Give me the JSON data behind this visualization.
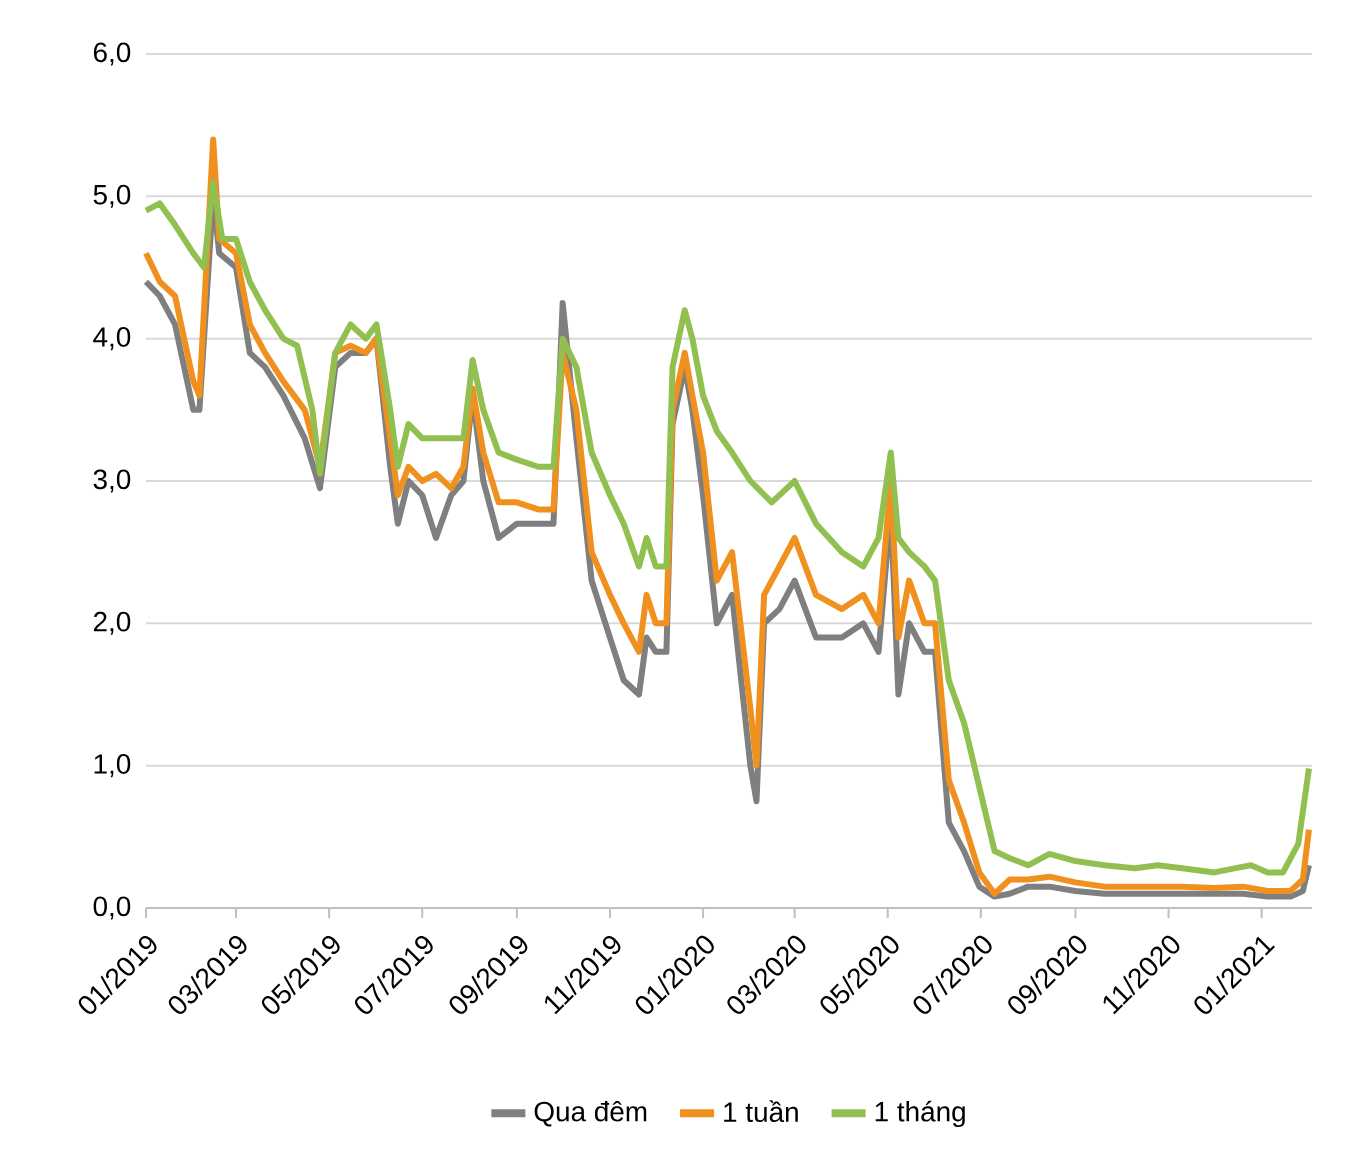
{
  "chart_data": {
    "type": "line",
    "xlim": [
      "2019-01-01",
      "2021-02-03"
    ],
    "xticks": [
      {
        "value": "2019-01-01",
        "label": "01/2019"
      },
      {
        "value": "2019-03-01",
        "label": "03/2019"
      },
      {
        "value": "2019-05-01",
        "label": "05/2019"
      },
      {
        "value": "2019-07-01",
        "label": "07/2019"
      },
      {
        "value": "2019-09-01",
        "label": "09/2019"
      },
      {
        "value": "2019-11-01",
        "label": "11/2019"
      },
      {
        "value": "2020-01-01",
        "label": "01/2020"
      },
      {
        "value": "2020-03-01",
        "label": "03/2020"
      },
      {
        "value": "2020-05-01",
        "label": "05/2020"
      },
      {
        "value": "2020-07-01",
        "label": "07/2020"
      },
      {
        "value": "2020-09-01",
        "label": "09/2020"
      },
      {
        "value": "2020-11-01",
        "label": "11/2020"
      },
      {
        "value": "2021-01-01",
        "label": "01/2021"
      }
    ],
    "ylim": [
      0,
      6
    ],
    "yticks": [
      {
        "value": 0,
        "label": "0,0"
      },
      {
        "value": 1,
        "label": "1,0"
      },
      {
        "value": 2,
        "label": "2,0"
      },
      {
        "value": 3,
        "label": "3,0"
      },
      {
        "value": 4,
        "label": "4,0"
      },
      {
        "value": 5,
        "label": "5,0"
      },
      {
        "value": 6,
        "label": "6,0"
      }
    ],
    "grid": "y",
    "legend": "bottom",
    "line_style": "solid",
    "series": [
      {
        "name": "Qua đêm",
        "color": "#7f7f7f",
        "x": [
          "2019-01-01",
          "2019-01-10",
          "2019-01-20",
          "2019-02-01",
          "2019-02-05",
          "2019-02-14",
          "2019-02-18",
          "2019-03-01",
          "2019-03-10",
          "2019-03-20",
          "2019-04-01",
          "2019-04-15",
          "2019-04-25",
          "2019-05-05",
          "2019-05-15",
          "2019-05-25",
          "2019-06-01",
          "2019-06-10",
          "2019-06-15",
          "2019-06-22",
          "2019-07-01",
          "2019-07-10",
          "2019-07-20",
          "2019-07-28",
          "2019-08-03",
          "2019-08-10",
          "2019-08-20",
          "2019-09-01",
          "2019-09-15",
          "2019-09-25",
          "2019-10-01",
          "2019-10-10",
          "2019-10-20",
          "2019-11-01",
          "2019-11-10",
          "2019-11-20",
          "2019-11-25",
          "2019-12-01",
          "2019-12-08",
          "2019-12-12",
          "2019-12-20",
          "2019-12-25",
          "2020-01-01",
          "2020-01-10",
          "2020-01-20",
          "2020-02-01",
          "2020-02-05",
          "2020-02-10",
          "2020-02-20",
          "2020-03-01",
          "2020-03-15",
          "2020-04-01",
          "2020-04-15",
          "2020-04-25",
          "2020-05-03",
          "2020-05-08",
          "2020-05-15",
          "2020-05-25",
          "2020-06-01",
          "2020-06-10",
          "2020-06-20",
          "2020-06-30",
          "2020-07-10",
          "2020-07-20",
          "2020-08-01",
          "2020-08-15",
          "2020-09-01",
          "2020-09-20",
          "2020-10-10",
          "2020-11-10",
          "2020-12-01",
          "2020-12-20",
          "2021-01-05",
          "2021-01-20",
          "2021-01-28",
          "2021-02-01"
        ],
        "values": [
          4.4,
          4.3,
          4.1,
          3.5,
          3.5,
          5.0,
          4.6,
          4.5,
          3.9,
          3.8,
          3.6,
          3.3,
          2.95,
          3.8,
          3.9,
          3.9,
          4.0,
          3.1,
          2.7,
          3.0,
          2.9,
          2.6,
          2.9,
          3.0,
          3.6,
          3.0,
          2.6,
          2.7,
          2.7,
          2.7,
          4.25,
          3.3,
          2.3,
          1.9,
          1.6,
          1.5,
          1.9,
          1.8,
          1.8,
          3.4,
          3.8,
          3.5,
          2.9,
          2.0,
          2.2,
          1.0,
          0.75,
          2.0,
          2.1,
          2.3,
          1.9,
          1.9,
          2.0,
          1.8,
          2.8,
          1.5,
          2.0,
          1.8,
          1.8,
          0.6,
          0.4,
          0.15,
          0.08,
          0.1,
          0.15,
          0.15,
          0.12,
          0.1,
          0.1,
          0.1,
          0.1,
          0.1,
          0.08,
          0.08,
          0.12,
          0.3
        ]
      },
      {
        "name": "1 tuần",
        "color": "#f0901e",
        "x": [
          "2019-01-01",
          "2019-01-10",
          "2019-01-20",
          "2019-02-01",
          "2019-02-05",
          "2019-02-14",
          "2019-02-18",
          "2019-03-01",
          "2019-03-10",
          "2019-03-20",
          "2019-04-01",
          "2019-04-15",
          "2019-04-25",
          "2019-05-05",
          "2019-05-15",
          "2019-05-25",
          "2019-06-01",
          "2019-06-10",
          "2019-06-15",
          "2019-06-22",
          "2019-07-01",
          "2019-07-10",
          "2019-07-20",
          "2019-07-28",
          "2019-08-03",
          "2019-08-10",
          "2019-08-20",
          "2019-09-01",
          "2019-09-15",
          "2019-09-25",
          "2019-10-01",
          "2019-10-10",
          "2019-10-20",
          "2019-11-01",
          "2019-11-10",
          "2019-11-20",
          "2019-11-25",
          "2019-12-01",
          "2019-12-08",
          "2019-12-12",
          "2019-12-20",
          "2019-12-25",
          "2020-01-01",
          "2020-01-10",
          "2020-01-20",
          "2020-02-01",
          "2020-02-05",
          "2020-02-10",
          "2020-02-20",
          "2020-03-01",
          "2020-03-15",
          "2020-04-01",
          "2020-04-15",
          "2020-04-25",
          "2020-05-03",
          "2020-05-08",
          "2020-05-15",
          "2020-05-25",
          "2020-06-01",
          "2020-06-10",
          "2020-06-20",
          "2020-06-30",
          "2020-07-10",
          "2020-07-20",
          "2020-08-01",
          "2020-08-15",
          "2020-09-01",
          "2020-09-20",
          "2020-10-10",
          "2020-11-10",
          "2020-12-01",
          "2020-12-20",
          "2021-01-05",
          "2021-01-20",
          "2021-01-28",
          "2021-02-01"
        ],
        "values": [
          4.6,
          4.4,
          4.3,
          3.7,
          3.6,
          5.4,
          4.7,
          4.6,
          4.1,
          3.9,
          3.7,
          3.5,
          3.1,
          3.9,
          3.95,
          3.9,
          4.0,
          3.3,
          2.9,
          3.1,
          3.0,
          3.05,
          2.95,
          3.1,
          3.65,
          3.2,
          2.85,
          2.85,
          2.8,
          2.8,
          3.9,
          3.5,
          2.5,
          2.2,
          2.0,
          1.8,
          2.2,
          2.0,
          2.0,
          3.5,
          3.9,
          3.6,
          3.2,
          2.3,
          2.5,
          1.4,
          1.0,
          2.2,
          2.4,
          2.6,
          2.2,
          2.1,
          2.2,
          2.0,
          3.0,
          1.9,
          2.3,
          2.0,
          2.0,
          0.9,
          0.6,
          0.25,
          0.1,
          0.2,
          0.2,
          0.22,
          0.18,
          0.15,
          0.15,
          0.15,
          0.14,
          0.15,
          0.12,
          0.12,
          0.2,
          0.55
        ]
      },
      {
        "name": "1 tháng",
        "color": "#92c050",
        "x": [
          "2019-01-01",
          "2019-01-10",
          "2019-01-20",
          "2019-02-01",
          "2019-02-08",
          "2019-02-14",
          "2019-02-20",
          "2019-03-01",
          "2019-03-10",
          "2019-03-20",
          "2019-04-01",
          "2019-04-10",
          "2019-04-20",
          "2019-04-25",
          "2019-05-05",
          "2019-05-15",
          "2019-05-25",
          "2019-06-01",
          "2019-06-10",
          "2019-06-15",
          "2019-06-22",
          "2019-07-01",
          "2019-07-10",
          "2019-07-20",
          "2019-07-28",
          "2019-08-03",
          "2019-08-10",
          "2019-08-20",
          "2019-09-01",
          "2019-09-15",
          "2019-09-25",
          "2019-10-01",
          "2019-10-10",
          "2019-10-20",
          "2019-11-01",
          "2019-11-10",
          "2019-11-20",
          "2019-11-25",
          "2019-12-01",
          "2019-12-08",
          "2019-12-12",
          "2019-12-20",
          "2019-12-25",
          "2020-01-01",
          "2020-01-10",
          "2020-01-20",
          "2020-02-01",
          "2020-02-15",
          "2020-03-01",
          "2020-03-15",
          "2020-04-01",
          "2020-04-15",
          "2020-04-25",
          "2020-05-03",
          "2020-05-08",
          "2020-05-15",
          "2020-05-25",
          "2020-06-01",
          "2020-06-10",
          "2020-06-20",
          "2020-06-30",
          "2020-07-10",
          "2020-07-20",
          "2020-08-01",
          "2020-08-15",
          "2020-09-01",
          "2020-09-20",
          "2020-10-10",
          "2020-10-25",
          "2020-11-10",
          "2020-12-01",
          "2020-12-15",
          "2020-12-25",
          "2021-01-05",
          "2021-01-15",
          "2021-01-25",
          "2021-02-01"
        ],
        "values": [
          4.9,
          4.95,
          4.8,
          4.6,
          4.5,
          5.1,
          4.7,
          4.7,
          4.4,
          4.2,
          4.0,
          3.95,
          3.5,
          3.05,
          3.9,
          4.1,
          4.0,
          4.1,
          3.5,
          3.1,
          3.4,
          3.3,
          3.3,
          3.3,
          3.3,
          3.85,
          3.5,
          3.2,
          3.15,
          3.1,
          3.1,
          4.0,
          3.8,
          3.2,
          2.9,
          2.7,
          2.4,
          2.6,
          2.4,
          2.4,
          3.8,
          4.2,
          4.0,
          3.6,
          3.35,
          3.2,
          3.0,
          2.85,
          3.0,
          2.7,
          2.5,
          2.4,
          2.6,
          3.2,
          2.6,
          2.5,
          2.4,
          2.3,
          1.6,
          1.3,
          0.85,
          0.4,
          0.35,
          0.3,
          0.38,
          0.33,
          0.3,
          0.28,
          0.3,
          0.28,
          0.25,
          0.28,
          0.3,
          0.25,
          0.25,
          0.45,
          0.98
        ]
      }
    ]
  }
}
